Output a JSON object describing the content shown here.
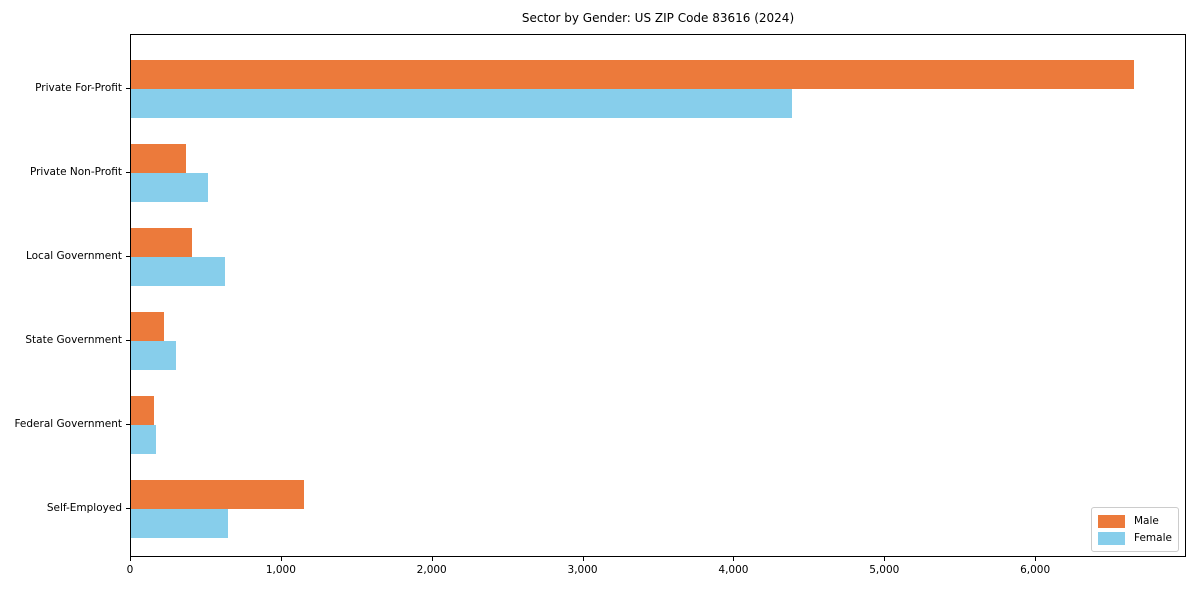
{
  "chart_data": {
    "type": "bar",
    "orientation": "horizontal",
    "title": "Sector by Gender: US ZIP Code 83616 (2024)",
    "categories": [
      "Private For-Profit",
      "Private Non-Profit",
      "Local Government",
      "State Government",
      "Federal Government",
      "Self-Employed"
    ],
    "series": [
      {
        "name": "Male",
        "color": "#EC7A3B",
        "values": [
          6650,
          365,
          405,
          220,
          150,
          1145
        ]
      },
      {
        "name": "Female",
        "color": "#87CEEB",
        "values": [
          4380,
          510,
          625,
          295,
          165,
          645
        ]
      }
    ],
    "xlim": [
      0,
      7000
    ],
    "x_ticks": [
      0,
      1000,
      2000,
      3000,
      4000,
      5000,
      6000
    ],
    "x_tick_labels": [
      "0",
      "1,000",
      "2,000",
      "3,000",
      "4,000",
      "5,000",
      "6,000"
    ],
    "ylabel": "",
    "xlabel": "",
    "grid": false,
    "legend_position": "lower right",
    "plot_background": "#ffffff",
    "spine_color": "#000000"
  }
}
